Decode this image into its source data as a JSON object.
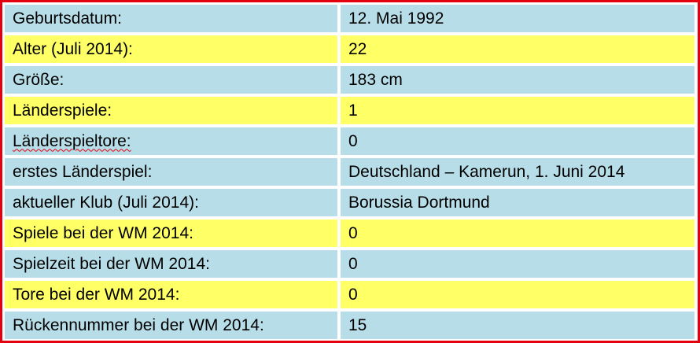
{
  "table": {
    "rows": [
      [
        "Geburtsdatum:",
        "12. Mai 1992"
      ],
      [
        "Alter (Juli 2014):",
        "22"
      ],
      [
        "Größe:",
        "183 cm"
      ],
      [
        "Länderspiele:",
        "1"
      ],
      [
        "Länderspieltore:",
        "0"
      ],
      [
        "erstes Länderspiel:",
        "Deutschland – Kamerun, 1. Juni 2014"
      ],
      [
        "aktueller Klub (Juli 2014):",
        "Borussia Dortmund"
      ],
      [
        "Spiele bei der WM 2014:",
        "0"
      ],
      [
        "Spielzeit bei der WM 2014:",
        "0"
      ],
      [
        "Tore bei der WM 2014:",
        "0"
      ],
      [
        "Rückennummer bei der WM 2014:",
        "15"
      ]
    ]
  }
}
